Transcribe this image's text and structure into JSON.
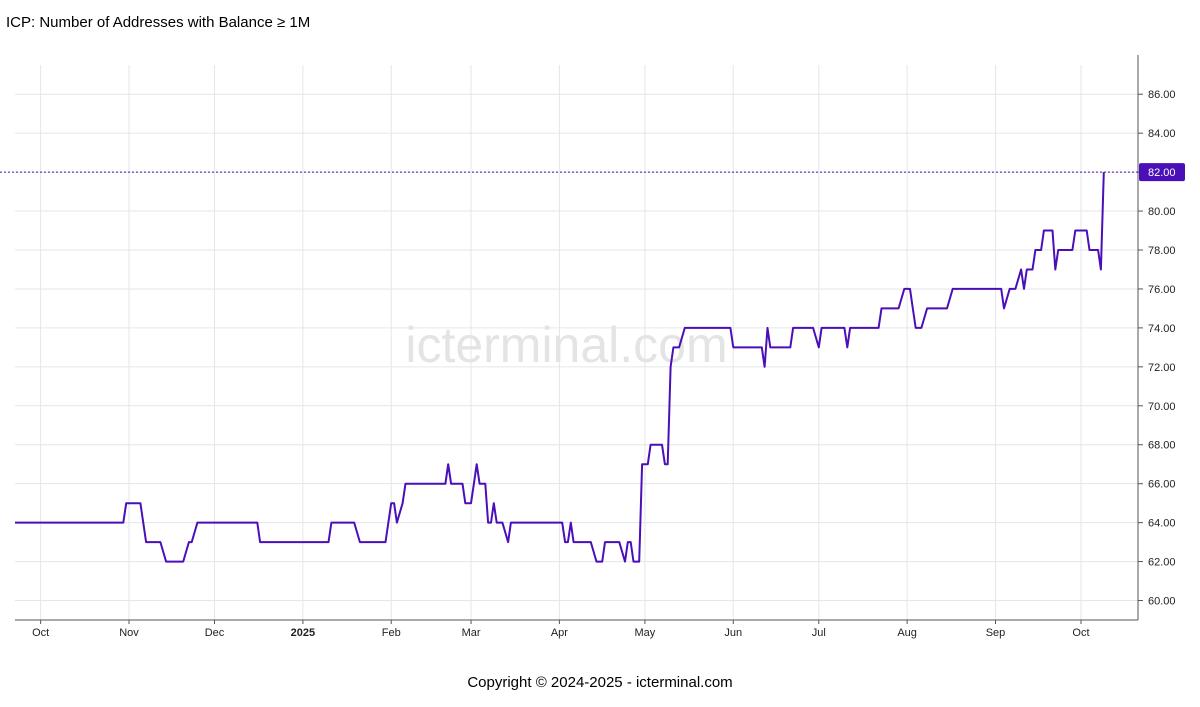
{
  "header": {
    "title": "ICP: Number of Addresses with Balance ≥ 1M"
  },
  "footer": {
    "copyright": "Copyright © 2024-2025 - icterminal.com"
  },
  "watermark": "icterminal.com",
  "colors": {
    "line": "#4a0fb8",
    "grid": "#e3e6ea",
    "label_bg": "#4a0fb8"
  },
  "chart_data": {
    "type": "line",
    "title": "ICP: Number of Addresses with Balance ≥ 1M",
    "xlabel": "",
    "ylabel": "",
    "ylim": [
      59,
      87.5
    ],
    "yticks": [
      60,
      62,
      64,
      66,
      68,
      70,
      72,
      74,
      76,
      78,
      80,
      82,
      84,
      86
    ],
    "xlim": [
      "2024-09-22",
      "2025-10-21"
    ],
    "xticks": [
      {
        "date": "2024-10-01",
        "label": "Oct",
        "bold": false
      },
      {
        "date": "2024-11-01",
        "label": "Nov",
        "bold": false
      },
      {
        "date": "2024-12-01",
        "label": "Dec",
        "bold": false
      },
      {
        "date": "2025-01-01",
        "label": "2025",
        "bold": true
      },
      {
        "date": "2025-02-01",
        "label": "Feb",
        "bold": false
      },
      {
        "date": "2025-03-01",
        "label": "Mar",
        "bold": false
      },
      {
        "date": "2025-04-01",
        "label": "Apr",
        "bold": false
      },
      {
        "date": "2025-05-01",
        "label": "May",
        "bold": false
      },
      {
        "date": "2025-06-01",
        "label": "Jun",
        "bold": false
      },
      {
        "date": "2025-07-01",
        "label": "Jul",
        "bold": false
      },
      {
        "date": "2025-08-01",
        "label": "Aug",
        "bold": false
      },
      {
        "date": "2025-09-01",
        "label": "Sep",
        "bold": false
      },
      {
        "date": "2025-10-01",
        "label": "Oct",
        "bold": false
      }
    ],
    "last_value": 82,
    "last_value_label": "82.00",
    "grid": true,
    "series": [
      {
        "points": [
          [
            "2024-09-22",
            64
          ],
          [
            "2024-10-30",
            64
          ],
          [
            "2024-10-31",
            65
          ],
          [
            "2024-11-05",
            65
          ],
          [
            "2024-11-07",
            63
          ],
          [
            "2024-11-12",
            63
          ],
          [
            "2024-11-14",
            62
          ],
          [
            "2024-11-20",
            62
          ],
          [
            "2024-11-22",
            63
          ],
          [
            "2024-11-23",
            63
          ],
          [
            "2024-11-25",
            64
          ],
          [
            "2024-12-16",
            64
          ],
          [
            "2024-12-17",
            63
          ],
          [
            "2025-01-10",
            63
          ],
          [
            "2025-01-11",
            64
          ],
          [
            "2025-01-19",
            64
          ],
          [
            "2025-01-21",
            63
          ],
          [
            "2025-01-30",
            63
          ],
          [
            "2025-02-01",
            65
          ],
          [
            "2025-02-02",
            65
          ],
          [
            "2025-02-03",
            64
          ],
          [
            "2025-02-05",
            65
          ],
          [
            "2025-02-06",
            66
          ],
          [
            "2025-02-20",
            66
          ],
          [
            "2025-02-21",
            67
          ],
          [
            "2025-02-22",
            66
          ],
          [
            "2025-02-26",
            66
          ],
          [
            "2025-02-27",
            65
          ],
          [
            "2025-03-01",
            65
          ],
          [
            "2025-03-02",
            66
          ],
          [
            "2025-03-03",
            67
          ],
          [
            "2025-03-04",
            66
          ],
          [
            "2025-03-06",
            66
          ],
          [
            "2025-03-07",
            64
          ],
          [
            "2025-03-08",
            64
          ],
          [
            "2025-03-09",
            65
          ],
          [
            "2025-03-10",
            64
          ],
          [
            "2025-03-12",
            64
          ],
          [
            "2025-03-14",
            63
          ],
          [
            "2025-03-15",
            64
          ],
          [
            "2025-04-02",
            64
          ],
          [
            "2025-04-03",
            63
          ],
          [
            "2025-04-04",
            63
          ],
          [
            "2025-04-05",
            64
          ],
          [
            "2025-04-06",
            63
          ],
          [
            "2025-04-12",
            63
          ],
          [
            "2025-04-14",
            62
          ],
          [
            "2025-04-16",
            62
          ],
          [
            "2025-04-17",
            63
          ],
          [
            "2025-04-22",
            63
          ],
          [
            "2025-04-24",
            62
          ],
          [
            "2025-04-25",
            63
          ],
          [
            "2025-04-26",
            63
          ],
          [
            "2025-04-27",
            62
          ],
          [
            "2025-04-29",
            62
          ],
          [
            "2025-04-30",
            67
          ],
          [
            "2025-05-02",
            67
          ],
          [
            "2025-05-03",
            68
          ],
          [
            "2025-05-07",
            68
          ],
          [
            "2025-05-08",
            67
          ],
          [
            "2025-05-09",
            67
          ],
          [
            "2025-05-10",
            72
          ],
          [
            "2025-05-11",
            73
          ],
          [
            "2025-05-13",
            73
          ],
          [
            "2025-05-15",
            74
          ],
          [
            "2025-05-31",
            74
          ],
          [
            "2025-06-01",
            73
          ],
          [
            "2025-06-11",
            73
          ],
          [
            "2025-06-12",
            72
          ],
          [
            "2025-06-13",
            74
          ],
          [
            "2025-06-14",
            73
          ],
          [
            "2025-06-21",
            73
          ],
          [
            "2025-06-22",
            74
          ],
          [
            "2025-06-29",
            74
          ],
          [
            "2025-07-01",
            73
          ],
          [
            "2025-07-02",
            74
          ],
          [
            "2025-07-10",
            74
          ],
          [
            "2025-07-11",
            73
          ],
          [
            "2025-07-12",
            74
          ],
          [
            "2025-07-22",
            74
          ],
          [
            "2025-07-23",
            75
          ],
          [
            "2025-07-29",
            75
          ],
          [
            "2025-07-31",
            76
          ],
          [
            "2025-08-02",
            76
          ],
          [
            "2025-08-03",
            75
          ],
          [
            "2025-08-04",
            74
          ],
          [
            "2025-08-06",
            74
          ],
          [
            "2025-08-08",
            75
          ],
          [
            "2025-08-15",
            75
          ],
          [
            "2025-08-17",
            76
          ],
          [
            "2025-09-03",
            76
          ],
          [
            "2025-09-04",
            75
          ],
          [
            "2025-09-06",
            76
          ],
          [
            "2025-09-08",
            76
          ],
          [
            "2025-09-10",
            77
          ],
          [
            "2025-09-11",
            76
          ],
          [
            "2025-09-12",
            77
          ],
          [
            "2025-09-14",
            77
          ],
          [
            "2025-09-15",
            78
          ],
          [
            "2025-09-17",
            78
          ],
          [
            "2025-09-18",
            79
          ],
          [
            "2025-09-21",
            79
          ],
          [
            "2025-09-22",
            77
          ],
          [
            "2025-09-23",
            78
          ],
          [
            "2025-09-28",
            78
          ],
          [
            "2025-09-29",
            79
          ],
          [
            "2025-10-03",
            79
          ],
          [
            "2025-10-04",
            78
          ],
          [
            "2025-10-07",
            78
          ],
          [
            "2025-10-08",
            77
          ],
          [
            "2025-10-09",
            82
          ]
        ]
      }
    ]
  }
}
